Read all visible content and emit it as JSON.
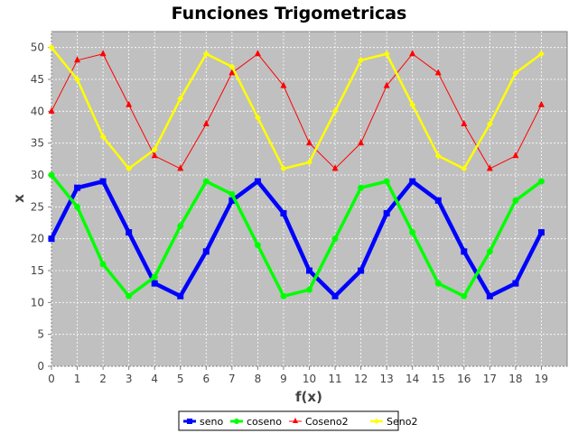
{
  "chart_data": {
    "type": "line",
    "title": "Funciones Trigometricas",
    "xlabel": "f(x)",
    "ylabel": "x",
    "xlim": [
      0,
      20
    ],
    "ylim": [
      0,
      52.5
    ],
    "x": [
      0,
      1,
      2,
      3,
      4,
      5,
      6,
      7,
      8,
      9,
      10,
      11,
      12,
      13,
      14,
      15,
      16,
      17,
      18,
      19
    ],
    "xticks": [
      "0",
      "1",
      "2",
      "3",
      "4",
      "5",
      "6",
      "7",
      "8",
      "9",
      "10",
      "11",
      "12",
      "13",
      "14",
      "15",
      "16",
      "17",
      "18",
      "19"
    ],
    "yticks": [
      "0",
      "5",
      "10",
      "15",
      "20",
      "25",
      "30",
      "35",
      "40",
      "45",
      "50"
    ],
    "grid": true,
    "legend_position": "bottom",
    "plot_background": "#c0c0c0",
    "series": [
      {
        "name": "seno",
        "color": "#0000ff",
        "marker": "square",
        "values": [
          20,
          28,
          29,
          21,
          13,
          11,
          18,
          26,
          29,
          24,
          15,
          11,
          15,
          24,
          29,
          26,
          18,
          11,
          13,
          21
        ]
      },
      {
        "name": "coseno",
        "color": "#00ff00",
        "marker": "circle",
        "values": [
          30,
          25,
          16,
          11,
          14,
          22,
          29,
          27,
          19,
          11,
          12,
          20,
          28,
          29,
          21,
          13,
          11,
          18,
          26,
          29
        ]
      },
      {
        "name": "Coseno2",
        "color": "#ff0000",
        "marker": "triangle",
        "values": [
          40,
          48,
          49,
          41,
          33,
          31,
          38,
          46,
          49,
          44,
          35,
          31,
          35,
          44,
          49,
          46,
          38,
          31,
          33,
          41
        ]
      },
      {
        "name": "Seno2",
        "color": "#ffff00",
        "marker": "diamond",
        "values": [
          50,
          45,
          36,
          31,
          34,
          42,
          49,
          47,
          39,
          31,
          32,
          40,
          48,
          49,
          41,
          33,
          31,
          38,
          46,
          49
        ]
      }
    ]
  }
}
